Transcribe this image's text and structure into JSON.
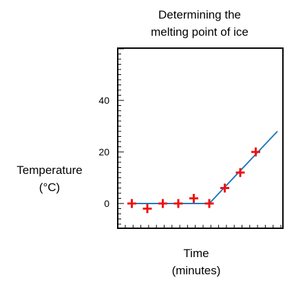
{
  "chart_data": {
    "type": "scatter",
    "title_lines": [
      "Determining  the",
      "melting  point of ice"
    ],
    "ylabel_lines": [
      "Temperature",
      "(°C)"
    ],
    "xlabel_lines": [
      "Time",
      "(minutes)"
    ],
    "ylim": [
      -10,
      60
    ],
    "y_ticks": [
      0,
      20,
      40
    ],
    "xlim": [
      0,
      20
    ],
    "measurements": {
      "marker": "plus",
      "color": "#ee1111",
      "points": [
        {
          "x": 1,
          "y": 0
        },
        {
          "x": 2,
          "y": -2
        },
        {
          "x": 3,
          "y": 0
        },
        {
          "x": 4,
          "y": 0
        },
        {
          "x": 5,
          "y": 2
        },
        {
          "x": 6,
          "y": 0
        },
        {
          "x": 7,
          "y": 6
        },
        {
          "x": 8,
          "y": 12
        },
        {
          "x": 9,
          "y": 20
        }
      ]
    },
    "fit_line": {
      "color": "#2277bb",
      "points": [
        {
          "x": 1,
          "y": 0
        },
        {
          "x": 6,
          "y": 0
        },
        {
          "x": 10.4,
          "y": 28
        }
      ]
    },
    "grid": false
  }
}
